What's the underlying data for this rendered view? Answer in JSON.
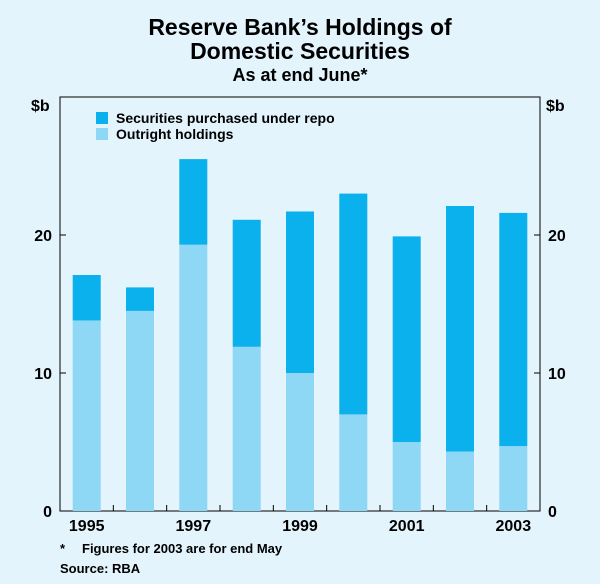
{
  "colors": {
    "background": "#e3f4fc",
    "repo": "#0ab1ec",
    "outright": "#8ed8f6",
    "frame": "#000000"
  },
  "title": {
    "line1": "Reserve Bank’s Holdings of",
    "line2": "Domestic Securities",
    "subtitle": "As at end June*"
  },
  "notes": {
    "footnote_marker": "*",
    "footnote_text": "Figures for 2003 are for end May",
    "source": "Source: RBA"
  },
  "chart_data": {
    "type": "bar",
    "stacked": true,
    "title": "Reserve Bank’s Holdings of Domestic Securities",
    "subtitle": "As at end June*",
    "categories": [
      "1995",
      "1996",
      "1997",
      "1998",
      "1999",
      "2000",
      "2001",
      "2002",
      "2003"
    ],
    "x_tick_labels": [
      "1995",
      "",
      "1997",
      "",
      "1999",
      "",
      "2001",
      "",
      "2003"
    ],
    "series": [
      {
        "name": "Outright holdings",
        "color": "#8ed8f6",
        "values": [
          13.8,
          14.5,
          19.3,
          11.9,
          10.0,
          7.0,
          5.0,
          4.3,
          4.7
        ]
      },
      {
        "name": "Securities purchased under repo",
        "color": "#0ab1ec",
        "values": [
          3.3,
          1.7,
          6.2,
          9.2,
          11.7,
          16.0,
          14.9,
          17.8,
          16.9
        ]
      }
    ],
    "legend_order": [
      "Securities purchased under repo",
      "Outright holdings"
    ],
    "legend_position": "top-left",
    "ylabel_left": "$b",
    "ylabel_right": "$b",
    "ylim": [
      0,
      30
    ],
    "yticks": [
      0,
      10,
      20
    ],
    "ytick_labels": [
      "0",
      "10",
      "20"
    ],
    "grid": false
  }
}
